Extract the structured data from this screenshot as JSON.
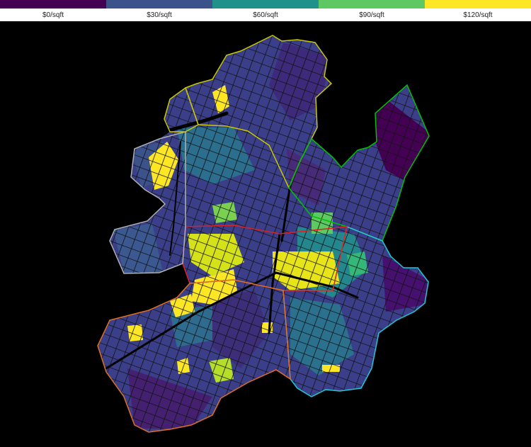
{
  "legend": {
    "items": [
      {
        "label": "$0/sqft",
        "color": "#440154"
      },
      {
        "label": "$30/sqft",
        "color": "#3b528b"
      },
      {
        "label": "$60/sqft",
        "color": "#21918c"
      },
      {
        "label": "$90/sqft",
        "color": "#5ec962"
      },
      {
        "label": "$120/sqft",
        "color": "#fde725"
      }
    ]
  },
  "map": {
    "background": "#000000",
    "district_outline_colors": [
      "#c8c800",
      "#00c000",
      "#e07020",
      "#e02020",
      "#20c8d8",
      "#b0b0b0"
    ]
  }
}
